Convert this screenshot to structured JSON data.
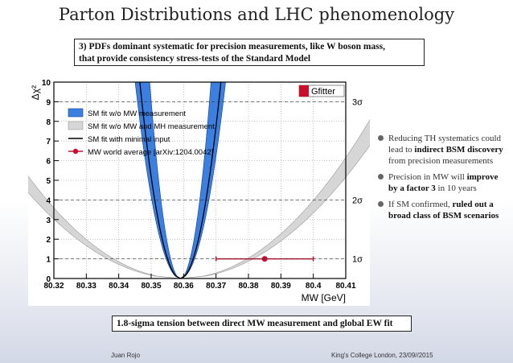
{
  "slide": {
    "title": "Parton Distributions and LHC phenomenology",
    "top_box_line1": "3) PDFs dominant systematic for precision measurements, like W boson mass,",
    "top_box_line2": "that provide consistency stress-tests of the Standard Model",
    "bottom_box": "1.8-sigma tension between direct MW measurement and global EW fit",
    "footer_left": "Juan Rojo",
    "footer_right": "King's College London, 23/09//2015"
  },
  "bullets": [
    {
      "pre": "Reducing TH systematics could lead to ",
      "bold": "indirect BSM discovery",
      "post": " from precision measurements"
    },
    {
      "pre": "Precision in MW will ",
      "bold": "improve by a factor 3",
      "post": " in 10 years"
    },
    {
      "pre": "If SM confirmed, ",
      "bold": "ruled out a broad class of BSM scenarios",
      "post": ""
    }
  ],
  "colors": {
    "blue_band": "#3b7fe0",
    "blue_edge": "#1a3d8f",
    "grey_band": "#d6d6d6",
    "grey_edge": "#9a9a9a",
    "red": "#c8102e",
    "frame": "#000000",
    "grid": "#888888"
  },
  "chart_data": {
    "type": "line",
    "xlabel": "MW [GeV]",
    "ylabel": "Δχ²",
    "xlim": [
      80.32,
      80.41
    ],
    "ylim": [
      0,
      10
    ],
    "x_ticks": [
      "80.32",
      "80.33",
      "80.34",
      "80.35",
      "80.36",
      "80.37",
      "80.38",
      "80.39",
      "80.4",
      "80.41"
    ],
    "y_ticks": [
      "0",
      "1",
      "2",
      "3",
      "4",
      "5",
      "6",
      "7",
      "8",
      "9",
      "10"
    ],
    "sigma_lines": [
      {
        "y": 1,
        "label": "1σ"
      },
      {
        "y": 4,
        "label": "2σ"
      },
      {
        "y": 9,
        "label": "3σ"
      }
    ],
    "logo": "Gfitter",
    "legend_position": "top-left",
    "series": [
      {
        "name": "SM fit w/o MW measurement",
        "kind": "band",
        "center": 80.359,
        "half_width_at_10": 0.0117,
        "band_width_at_10": 0.0045
      },
      {
        "name": "SM fit w/o MW and MH measurement",
        "kind": "band",
        "center": 80.359,
        "half_width_at_10": 0.068,
        "band_width_at_10": 0.006
      },
      {
        "name": "SM fit with minimal input",
        "kind": "line",
        "center": 80.359,
        "half_width_at_10": 0.0125
      },
      {
        "name": "MW world average [arXiv:1204.0042]",
        "kind": "point",
        "x": 80.385,
        "y": 1,
        "x_err": 0.015
      }
    ]
  }
}
